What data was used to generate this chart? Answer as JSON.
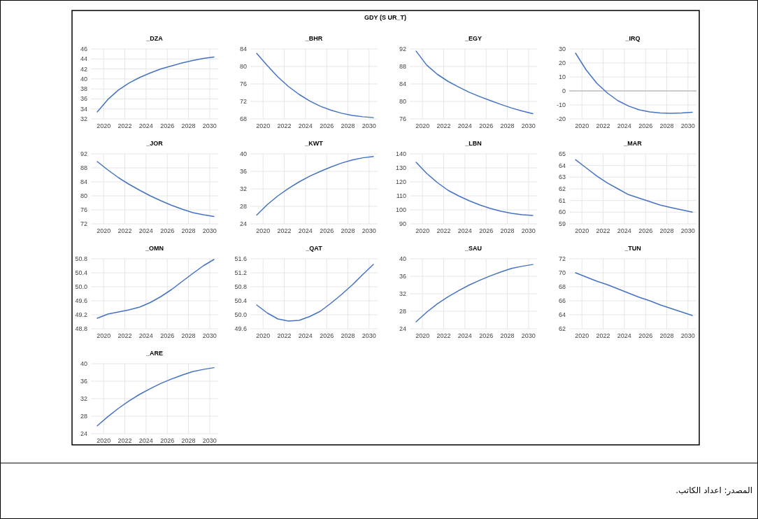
{
  "chart_data": [
    {
      "type": "other",
      "title": "GDY (S UR_T)",
      "annotations": [
        "المصدر: اعداد الكاتب."
      ]
    },
    {
      "type": "line",
      "title": "_DZA",
      "x": [
        2019.4,
        2020.4,
        2021.4,
        2022.4,
        2023.4,
        2024.4,
        2025.4,
        2026.4,
        2027.4,
        2028.4,
        2029.4,
        2030.4
      ],
      "values": [
        33.4,
        35.9,
        37.8,
        39.2,
        40.3,
        41.2,
        42.0,
        42.6,
        43.2,
        43.7,
        44.1,
        44.4
      ],
      "color": "#4472c4",
      "xlim": [
        2018.8,
        2030.8
      ],
      "ylim": [
        32,
        46
      ],
      "xticks": [
        2020,
        2022,
        2024,
        2026,
        2028,
        2030
      ],
      "yticks": [
        32,
        34,
        36,
        38,
        40,
        42,
        44,
        46
      ],
      "grid": true
    },
    {
      "type": "line",
      "title": "_BHR",
      "x": [
        2019.4,
        2020.4,
        2021.4,
        2022.4,
        2023.4,
        2024.4,
        2025.4,
        2026.4,
        2027.4,
        2028.4,
        2029.4,
        2030.4
      ],
      "values": [
        83.0,
        80.2,
        77.6,
        75.4,
        73.6,
        72.1,
        70.9,
        70.0,
        69.3,
        68.8,
        68.5,
        68.3
      ],
      "color": "#4472c4",
      "xlim": [
        2018.8,
        2030.8
      ],
      "ylim": [
        68,
        84
      ],
      "xticks": [
        2020,
        2022,
        2024,
        2026,
        2028,
        2030
      ],
      "yticks": [
        68,
        72,
        76,
        80,
        84
      ],
      "grid": true
    },
    {
      "type": "line",
      "title": "_EGY",
      "x": [
        2019.4,
        2020.4,
        2021.4,
        2022.4,
        2023.4,
        2024.4,
        2025.4,
        2026.4,
        2027.4,
        2028.4,
        2029.4,
        2030.4
      ],
      "values": [
        91.5,
        88.3,
        86.2,
        84.6,
        83.3,
        82.1,
        81.1,
        80.2,
        79.3,
        78.5,
        77.8,
        77.2
      ],
      "color": "#4472c4",
      "xlim": [
        2018.8,
        2030.8
      ],
      "ylim": [
        76,
        92
      ],
      "xticks": [
        2020,
        2022,
        2024,
        2026,
        2028,
        2030
      ],
      "yticks": [
        76,
        80,
        84,
        88,
        92
      ],
      "grid": true
    },
    {
      "type": "line",
      "title": "_IRQ",
      "x": [
        2019.4,
        2020.4,
        2021.4,
        2022.4,
        2023.4,
        2024.4,
        2025.4,
        2026.4,
        2027.4,
        2028.4,
        2029.4,
        2030.4
      ],
      "values": [
        27,
        15,
        5.5,
        -1.5,
        -7,
        -10.8,
        -13.5,
        -15,
        -15.8,
        -16,
        -15.8,
        -15.3
      ],
      "color": "#4472c4",
      "xlim": [
        2018.8,
        2030.8
      ],
      "ylim": [
        -20,
        30
      ],
      "xticks": [
        2020,
        2022,
        2024,
        2026,
        2028,
        2030
      ],
      "yticks": [
        -20,
        -10,
        0,
        10,
        20,
        30
      ],
      "grid": true,
      "ref_lines": [
        {
          "axis": "y",
          "value": 0,
          "color": "#bfbfbf"
        }
      ]
    },
    {
      "type": "line",
      "title": "_JOR",
      "x": [
        2019.4,
        2020.4,
        2021.4,
        2022.4,
        2023.4,
        2024.4,
        2025.4,
        2026.4,
        2027.4,
        2028.4,
        2029.4,
        2030.4
      ],
      "values": [
        89.8,
        87.4,
        85.2,
        83.3,
        81.6,
        80.0,
        78.6,
        77.3,
        76.2,
        75.2,
        74.6,
        74.1
      ],
      "color": "#4472c4",
      "xlim": [
        2018.8,
        2030.8
      ],
      "ylim": [
        72,
        92
      ],
      "xticks": [
        2020,
        2022,
        2024,
        2026,
        2028,
        2030
      ],
      "yticks": [
        72,
        76,
        80,
        84,
        88,
        92
      ],
      "grid": true
    },
    {
      "type": "line",
      "title": "_KWT",
      "x": [
        2019.4,
        2020.4,
        2021.4,
        2022.4,
        2023.4,
        2024.4,
        2025.4,
        2026.4,
        2027.4,
        2028.4,
        2029.4,
        2030.4
      ],
      "values": [
        26.0,
        28.4,
        30.4,
        32.1,
        33.6,
        34.9,
        36.0,
        37.0,
        37.9,
        38.6,
        39.1,
        39.4
      ],
      "color": "#4472c4",
      "xlim": [
        2018.8,
        2030.8
      ],
      "ylim": [
        24,
        40
      ],
      "xticks": [
        2020,
        2022,
        2024,
        2026,
        2028,
        2030
      ],
      "yticks": [
        24,
        28,
        32,
        36,
        40
      ],
      "grid": true
    },
    {
      "type": "line",
      "title": "_LBN",
      "x": [
        2019.4,
        2020.4,
        2021.4,
        2022.4,
        2023.4,
        2024.4,
        2025.4,
        2026.4,
        2027.4,
        2028.4,
        2029.4,
        2030.4
      ],
      "values": [
        134,
        126,
        119.5,
        114,
        110,
        106.5,
        103.5,
        101,
        99,
        97.5,
        96.5,
        96
      ],
      "color": "#4472c4",
      "xlim": [
        2018.8,
        2030.8
      ],
      "ylim": [
        90,
        140
      ],
      "xticks": [
        2020,
        2022,
        2024,
        2026,
        2028,
        2030
      ],
      "yticks": [
        90,
        100,
        110,
        120,
        130,
        140
      ],
      "grid": true
    },
    {
      "type": "line",
      "title": "_MAR",
      "x": [
        2019.4,
        2020.4,
        2021.4,
        2022.4,
        2023.4,
        2024.4,
        2025.4,
        2026.4,
        2027.4,
        2028.4,
        2029.4,
        2030.4
      ],
      "values": [
        64.5,
        63.8,
        63.1,
        62.5,
        62.0,
        61.5,
        61.2,
        60.9,
        60.6,
        60.4,
        60.2,
        60.0
      ],
      "color": "#4472c4",
      "xlim": [
        2018.8,
        2030.8
      ],
      "ylim": [
        59,
        65
      ],
      "xticks": [
        2020,
        2022,
        2024,
        2026,
        2028,
        2030
      ],
      "yticks": [
        59,
        60,
        61,
        62,
        63,
        64,
        65
      ],
      "grid": true
    },
    {
      "type": "line",
      "title": "_OMN",
      "x": [
        2019.4,
        2020.4,
        2021.4,
        2022.4,
        2023.4,
        2024.4,
        2025.4,
        2026.4,
        2027.4,
        2028.4,
        2029.4,
        2030.4
      ],
      "values": [
        49.1,
        49.22,
        49.28,
        49.34,
        49.42,
        49.55,
        49.72,
        49.92,
        50.15,
        50.38,
        50.6,
        50.78
      ],
      "color": "#4472c4",
      "xlim": [
        2018.8,
        2030.8
      ],
      "ylim": [
        48.8,
        50.8
      ],
      "xticks": [
        2020,
        2022,
        2024,
        2026,
        2028,
        2030
      ],
      "yticks": [
        48.8,
        49.2,
        49.6,
        {
          "value": 50,
          "label": "50.0"
        },
        50.4,
        50.8
      ],
      "grid": true
    },
    {
      "type": "line",
      "title": "_QAT",
      "x": [
        2019.4,
        2020.4,
        2021.4,
        2022.4,
        2023.4,
        2024.4,
        2025.4,
        2026.4,
        2027.4,
        2028.4,
        2029.4,
        2030.4
      ],
      "values": [
        50.28,
        50.05,
        49.88,
        49.82,
        49.84,
        49.95,
        50.1,
        50.33,
        50.58,
        50.85,
        51.15,
        51.44
      ],
      "color": "#4472c4",
      "xlim": [
        2018.8,
        2030.8
      ],
      "ylim": [
        49.6,
        51.6
      ],
      "xticks": [
        2020,
        2022,
        2024,
        2026,
        2028,
        2030
      ],
      "yticks": [
        49.6,
        {
          "value": 50,
          "label": "50.0"
        },
        50.4,
        50.8,
        51.2,
        51.6
      ],
      "grid": true
    },
    {
      "type": "line",
      "title": "_SAU",
      "x": [
        2019.4,
        2020.4,
        2021.4,
        2022.4,
        2023.4,
        2024.4,
        2025.4,
        2026.4,
        2027.4,
        2028.4,
        2029.4,
        2030.4
      ],
      "values": [
        25.6,
        27.8,
        29.7,
        31.3,
        32.7,
        34.0,
        35.1,
        36.1,
        37.0,
        37.8,
        38.3,
        38.7
      ],
      "color": "#4472c4",
      "xlim": [
        2018.8,
        2030.8
      ],
      "ylim": [
        24,
        40
      ],
      "xticks": [
        2020,
        2022,
        2024,
        2026,
        2028,
        2030
      ],
      "yticks": [
        24,
        28,
        32,
        36,
        40
      ],
      "grid": true
    },
    {
      "type": "line",
      "title": "_TUN",
      "x": [
        2019.4,
        2020.4,
        2021.4,
        2022.4,
        2023.4,
        2024.4,
        2025.4,
        2026.4,
        2027.4,
        2028.4,
        2029.4,
        2030.4
      ],
      "values": [
        70.0,
        69.4,
        68.8,
        68.3,
        67.7,
        67.1,
        66.5,
        66.0,
        65.4,
        64.9,
        64.4,
        63.9
      ],
      "color": "#4472c4",
      "xlim": [
        2018.8,
        2030.8
      ],
      "ylim": [
        62,
        72
      ],
      "xticks": [
        2020,
        2022,
        2024,
        2026,
        2028,
        2030
      ],
      "yticks": [
        62,
        64,
        66,
        68,
        70,
        72
      ],
      "grid": true
    },
    {
      "type": "line",
      "title": "_ARE",
      "x": [
        2019.4,
        2020.4,
        2021.4,
        2022.4,
        2023.4,
        2024.4,
        2025.4,
        2026.4,
        2027.4,
        2028.4,
        2029.4,
        2030.4
      ],
      "values": [
        25.8,
        27.9,
        29.8,
        31.5,
        33.0,
        34.3,
        35.5,
        36.5,
        37.4,
        38.2,
        38.7,
        39.1
      ],
      "color": "#4472c4",
      "xlim": [
        2018.8,
        2030.8
      ],
      "ylim": [
        24,
        40
      ],
      "xticks": [
        2020,
        2022,
        2024,
        2026,
        2028,
        2030
      ],
      "yticks": [
        24,
        28,
        32,
        36,
        40
      ],
      "grid": true
    }
  ]
}
